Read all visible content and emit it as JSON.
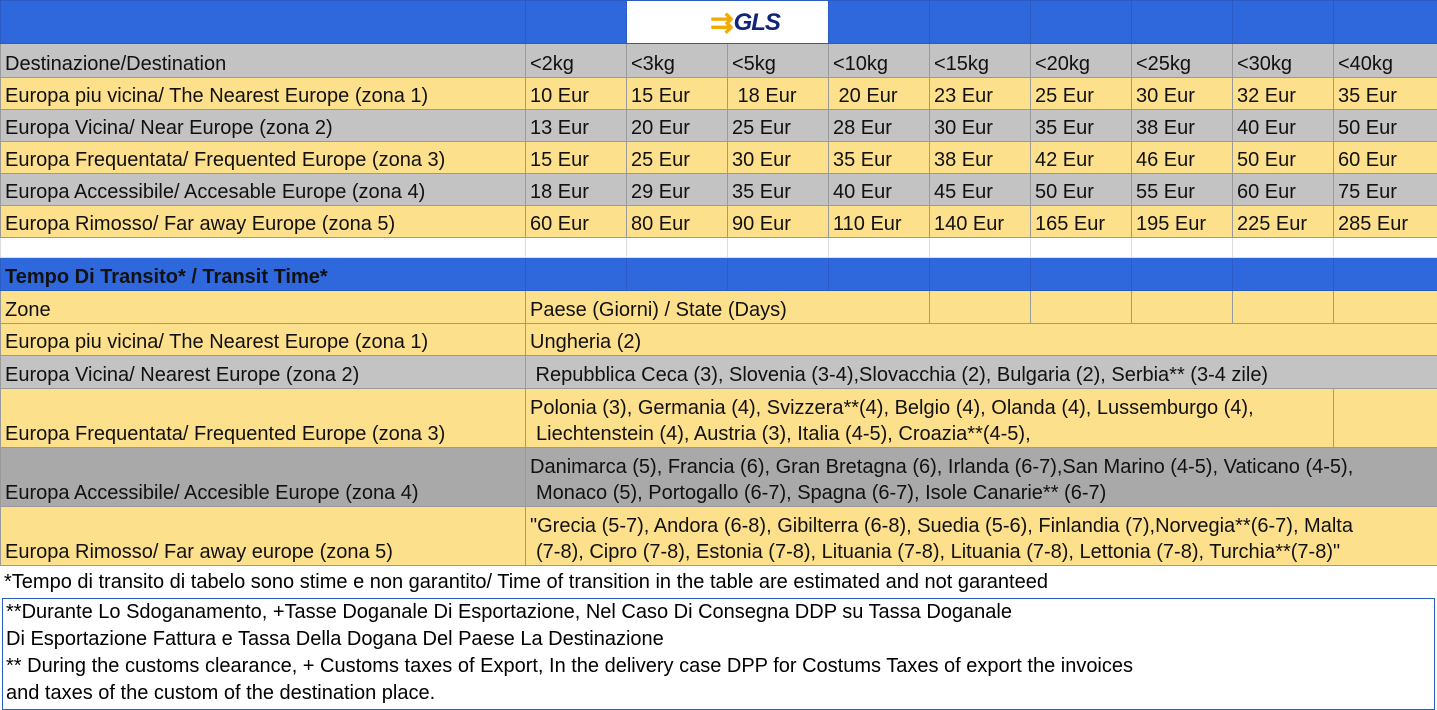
{
  "logo": "GLS",
  "price_table": {
    "header": [
      "Destinazione/Destination",
      "<2kg",
      "<3kg",
      "<5kg",
      "<10kg",
      "<15kg",
      "<20kg",
      "<25kg",
      "<30kg",
      "<40kg"
    ],
    "rows": [
      [
        "Europa piu vicina/ The Nearest Europe (zona 1)",
        "10 Eur",
        "15 Eur",
        " 18 Eur",
        " 20 Eur",
        "23 Eur",
        "25 Eur",
        "30 Eur",
        "32 Eur",
        "35 Eur"
      ],
      [
        "Europa Vicina/ Near Europe (zona 2)",
        "13 Eur",
        "20 Eur",
        "25 Eur",
        "28 Eur",
        "30 Eur",
        "35 Eur",
        "38 Eur",
        "40 Eur",
        "50 Eur"
      ],
      [
        "Europa Frequentata/ Frequented Europe (zona 3)",
        "15 Eur",
        "25 Eur",
        "30 Eur",
        "35 Eur",
        "38 Eur",
        "42 Eur",
        "46 Eur",
        "50 Eur",
        "60 Eur"
      ],
      [
        "Europa Accessibile/ Accesable Europe (zona 4)",
        "18 Eur",
        "29 Eur",
        "35 Eur",
        "40 Eur",
        "45 Eur",
        "50 Eur",
        "55 Eur",
        "60 Eur",
        "75 Eur"
      ],
      [
        "Europa Rimosso/ Far away Europe (zona 5)",
        "60 Eur",
        "80 Eur",
        "90 Eur",
        "110 Eur",
        "140 Eur",
        "165 Eur",
        "195 Eur",
        "225 Eur",
        "285 Eur"
      ]
    ]
  },
  "transit": {
    "title": "Tempo Di Transito* / Transit Time*",
    "header": [
      "Zone",
      "Paese (Giorni) / State (Days)"
    ],
    "rows": [
      [
        "Europa piu vicina/ The Nearest Europe (zona 1)",
        "Ungheria (2)"
      ],
      [
        "Europa Vicina/ Nearest Europe (zona 2)",
        " Repubblica Ceca (3), Slovenia (3-4),Slovacchia (2), Bulgaria (2), Serbia** (3-4 zile)"
      ],
      [
        "Europa Frequentata/ Frequented Europe (zona 3)",
        "Polonia (3), Germania (4), Svizzera**(4), Belgio (4), Olanda (4), Lussemburgo (4),",
        "Liechtenstein (4), Austria (3), Italia (4-5), Croazia**(4-5),"
      ],
      [
        "Europa Accessibile/ Accesible Europe (zona 4)",
        "Danimarca (5), Francia (6), Gran Bretagna (6), Irlanda (6-7),San Marino (4-5), Vaticano (4-5),",
        "Monaco (5), Portogallo (6-7), Spagna (6-7), Isole Canarie** (6-7)"
      ],
      [
        "Europa Rimosso/ Far away europe (zona 5)",
        "\"Grecia (5-7), Andora (6-8), Gibilterra (6-8), Suedia (5-6), Finlandia (7),Norvegia**(6-7), Malta",
        "(7-8), Cipro (7-8), Estonia (7-8), Lituania (7-8), Lituania (7-8), Lettonia (7-8), Turchia**(7-8)\""
      ]
    ]
  },
  "footnote": "*Tempo di transito di tabelo sono stime e non garantito/ Time of transition in the table are estimated and not garanteed",
  "notes": [
    "**Durante Lo Sdoganamento, +Tasse Doganale Di Esportazione, Nel Caso Di Consegna DDP su Tassa Doganale",
    "Di Esportazione Fattura e Tassa Della Dogana Del Paese La Destinazione",
    "** During the customs clearance, + Customs taxes of Export, In the delivery case DPP for Costums Taxes of export the invoices",
    "and taxes of the custom of the destination place."
  ],
  "colors": {
    "blue": "#2f68dc",
    "yellow": "#fde08c",
    "gray": "#c3c3c3"
  }
}
